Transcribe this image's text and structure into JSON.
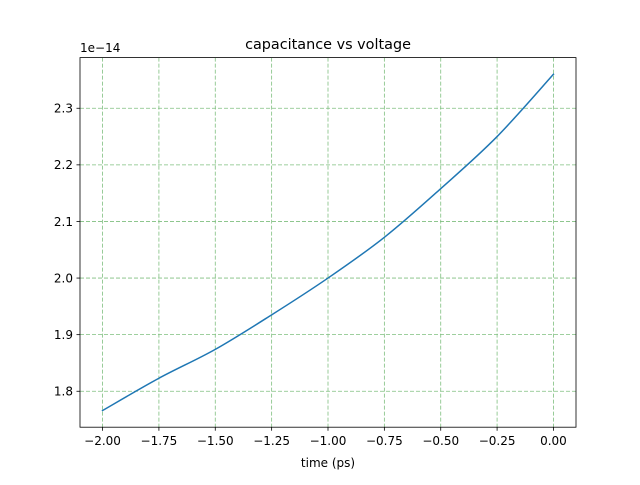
{
  "chart_data": {
    "type": "line",
    "title": "capacitance vs voltage",
    "xlabel": "time (ps)",
    "ylabel": "",
    "y_offset_label": "1e−14",
    "xlim": [
      -2.1,
      0.1
    ],
    "ylim": [
      1.7365,
      2.3895
    ],
    "x_ticks": [
      -2.0,
      -1.75,
      -1.5,
      -1.25,
      -1.0,
      -0.75,
      -0.5,
      -0.25,
      0.0
    ],
    "x_tick_labels": [
      "−2.00",
      "−1.75",
      "−1.50",
      "−1.25",
      "−1.00",
      "−0.75",
      "−0.50",
      "−0.25",
      "0.00"
    ],
    "y_ticks": [
      1.8,
      1.9,
      2.0,
      2.1,
      2.2,
      2.3
    ],
    "y_tick_labels": [
      "1.8",
      "1.9",
      "2.0",
      "2.1",
      "2.2",
      "2.3"
    ],
    "grid": true,
    "grid_style": "dashed",
    "grid_color": "#7fbf7f",
    "series": [
      {
        "color": "#1f77b4",
        "x": [
          -2.0,
          -1.75,
          -1.5,
          -1.25,
          -1.0,
          -0.75,
          -0.5,
          -0.25,
          0.0
        ],
        "y": [
          1.766,
          1.823,
          1.874,
          1.935,
          2.0,
          2.072,
          2.158,
          2.25,
          2.36
        ]
      }
    ]
  }
}
